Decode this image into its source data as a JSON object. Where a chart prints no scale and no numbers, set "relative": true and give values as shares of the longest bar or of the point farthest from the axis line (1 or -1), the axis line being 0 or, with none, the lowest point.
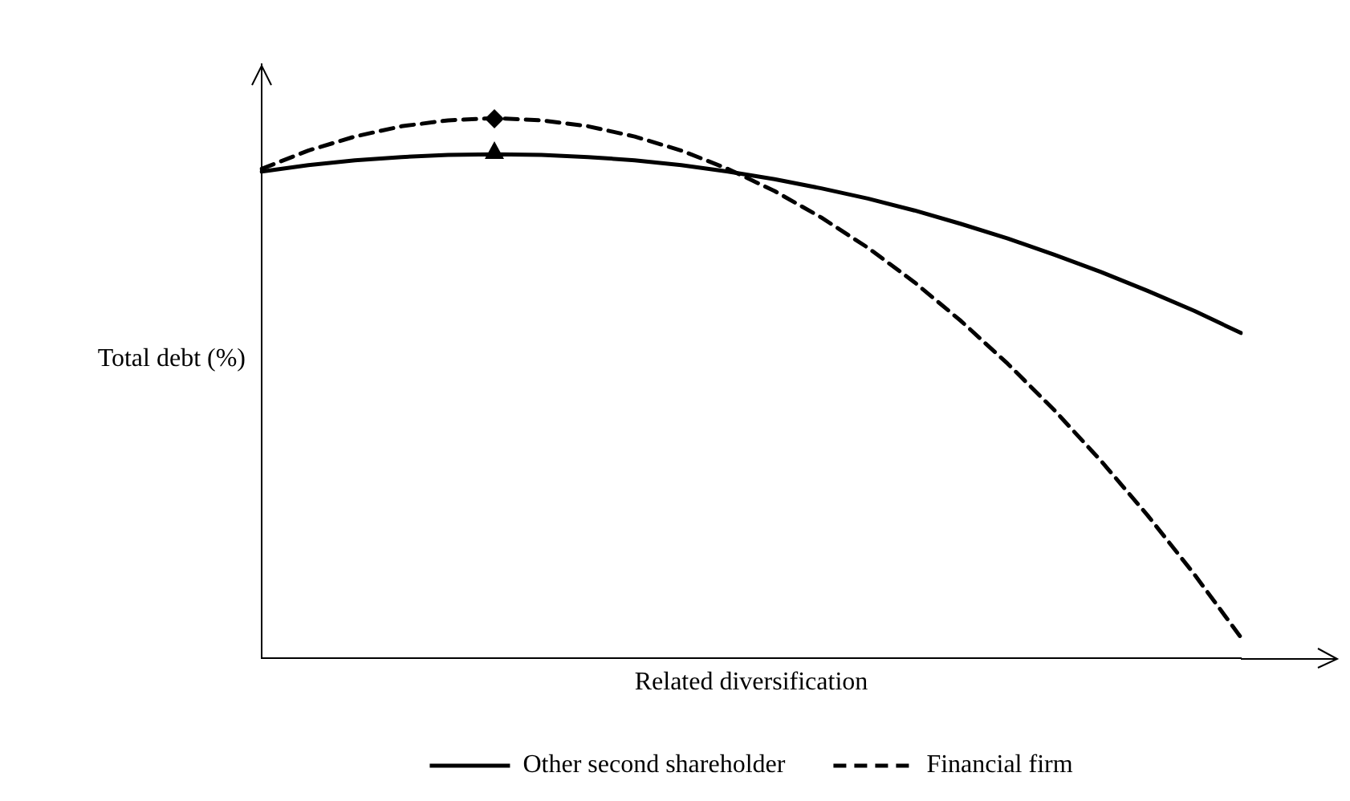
{
  "chart_data": {
    "type": "line",
    "relative": true,
    "xlabel": "Related diversification",
    "ylabel": "Total debt (%)",
    "legend": "bottom",
    "grid": false,
    "categories": [
      null,
      null,
      null,
      null,
      null,
      null,
      null,
      null,
      null,
      null,
      null,
      null,
      null,
      null,
      null,
      null,
      null,
      null,
      null,
      null,
      null,
      null
    ],
    "series": [
      {
        "name": "Other second shareholder",
        "color": "#000000",
        "line_style": "solid",
        "values": [
          0.901,
          0.913,
          0.922,
          0.928,
          0.932,
          0.933,
          0.932,
          0.928,
          0.922,
          0.913,
          0.901,
          0.887,
          0.87,
          0.851,
          0.829,
          0.804,
          0.777,
          0.747,
          0.715,
          0.68,
          0.643,
          0.602
        ]
      },
      {
        "name": "Financial firm",
        "color": "#000000",
        "line_style": "dashed",
        "values": [
          0.906,
          0.94,
          0.966,
          0.985,
          0.996,
          1.0,
          0.996,
          0.985,
          0.966,
          0.94,
          0.906,
          0.865,
          0.816,
          0.76,
          0.696,
          0.624,
          0.545,
          0.459,
          0.365,
          0.264,
          0.155,
          0.038
        ]
      }
    ]
  }
}
